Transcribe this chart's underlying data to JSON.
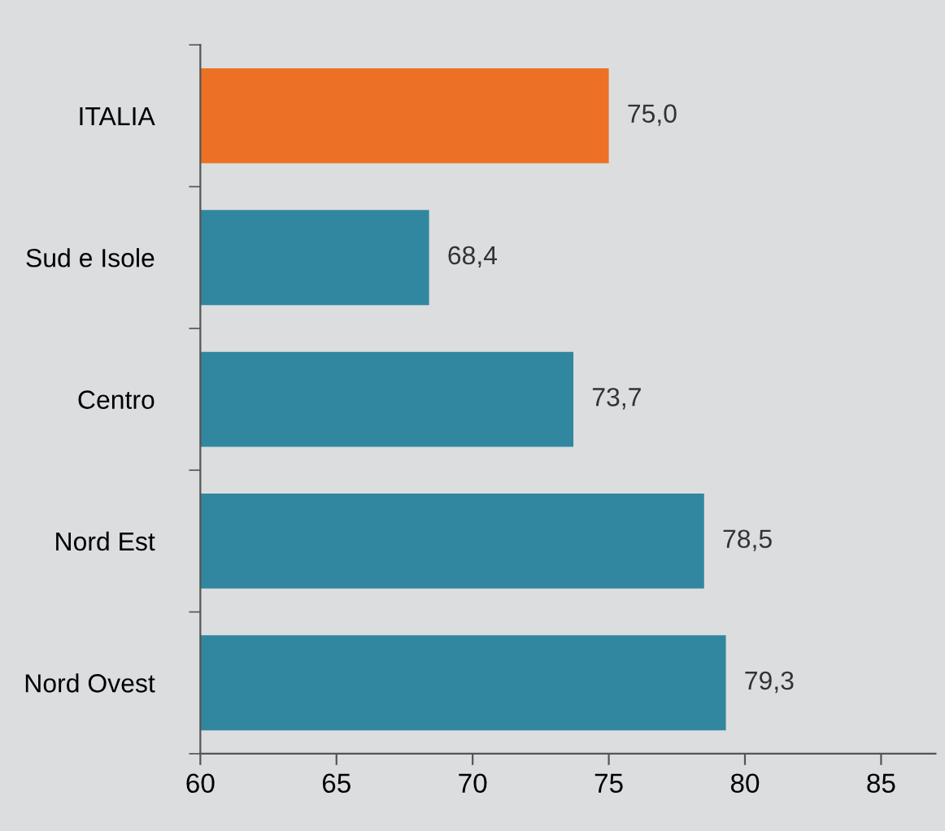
{
  "chart_data": {
    "type": "bar",
    "orientation": "horizontal",
    "categories": [
      "ITALIA",
      "Sud e Isole",
      "Centro",
      "Nord Est",
      "Nord Ovest"
    ],
    "values": [
      75.0,
      68.4,
      73.7,
      78.5,
      79.3
    ],
    "colors": [
      "#ec7125",
      "#31879f",
      "#31879f",
      "#31879f",
      "#31879f"
    ],
    "value_labels": [
      "75,0",
      "68,4",
      "73,7",
      "78,5",
      "79,3"
    ],
    "xlim": [
      60,
      87
    ],
    "xticks": [
      60,
      65,
      70,
      75,
      80,
      85
    ],
    "grid": false,
    "legend": false
  }
}
